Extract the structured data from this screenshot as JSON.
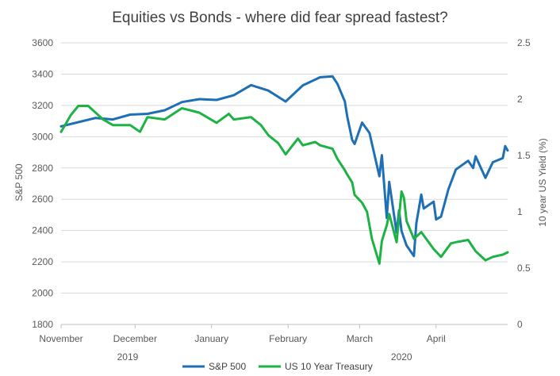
{
  "chart_data": {
    "type": "line",
    "title": "Equities vs Bonds - where did fear spread fastest?",
    "ylabel_left": "S&P 500",
    "ylabel_right": "10 year US Yield (%)",
    "ylim_left": [
      1800,
      3600
    ],
    "ylim_right": [
      0,
      2.5
    ],
    "yticks_left": [
      "1800",
      "2000",
      "2200",
      "2400",
      "2600",
      "2800",
      "3000",
      "3200",
      "3400",
      "3600"
    ],
    "yticks_right": [
      "0",
      "0.5",
      "1",
      "1.5",
      "2",
      "2.5"
    ],
    "x_month_labels": [
      "November",
      "December",
      "January",
      "February",
      "March",
      "April"
    ],
    "x_year_labels": [
      "2019",
      "2020"
    ],
    "grid": true,
    "legend_position": "bottom",
    "colors": {
      "sp500": "#1f6fb7",
      "treasury": "#1db344",
      "grid": "#d9d9d9"
    },
    "series": [
      {
        "name": "S&P 500",
        "axis": "left",
        "color": "#1f6fb7",
        "dates": [
          "2019-11-01",
          "2019-11-08",
          "2019-11-15",
          "2019-11-22",
          "2019-11-29",
          "2019-12-06",
          "2019-12-13",
          "2019-12-20",
          "2019-12-27",
          "2020-01-03",
          "2020-01-10",
          "2020-01-17",
          "2020-01-24",
          "2020-01-31",
          "2020-02-07",
          "2020-02-14",
          "2020-02-19",
          "2020-02-21",
          "2020-02-24",
          "2020-02-25",
          "2020-02-27",
          "2020-02-28",
          "2020-03-02",
          "2020-03-05",
          "2020-03-09",
          "2020-03-10",
          "2020-03-12",
          "2020-03-13",
          "2020-03-16",
          "2020-03-17",
          "2020-03-18",
          "2020-03-20",
          "2020-03-23",
          "2020-03-24",
          "2020-03-26",
          "2020-03-27",
          "2020-03-31",
          "2020-04-01",
          "2020-04-03",
          "2020-04-06",
          "2020-04-09",
          "2020-04-14",
          "2020-04-16",
          "2020-04-17",
          "2020-04-21",
          "2020-04-24",
          "2020-04-28",
          "2020-04-29",
          "2020-04-30"
        ],
        "values": [
          3066,
          3093,
          3120,
          3110,
          3141,
          3146,
          3169,
          3221,
          3240,
          3235,
          3265,
          3330,
          3295,
          3225,
          3328,
          3380,
          3386,
          3338,
          3226,
          3128,
          2979,
          2954,
          3090,
          3024,
          2747,
          2882,
          2481,
          2711,
          2386,
          2529,
          2398,
          2305,
          2237,
          2447,
          2630,
          2541,
          2585,
          2471,
          2489,
          2664,
          2790,
          2846,
          2800,
          2875,
          2737,
          2837,
          2863,
          2940,
          2912
        ]
      },
      {
        "name": "US 10 Year Treasury",
        "axis": "right",
        "color": "#1db344",
        "dates": [
          "2019-11-01",
          "2019-11-05",
          "2019-11-08",
          "2019-11-12",
          "2019-11-18",
          "2019-11-22",
          "2019-11-29",
          "2019-12-03",
          "2019-12-06",
          "2019-12-13",
          "2019-12-20",
          "2019-12-27",
          "2020-01-03",
          "2020-01-08",
          "2020-01-10",
          "2020-01-17",
          "2020-01-21",
          "2020-01-24",
          "2020-01-28",
          "2020-01-31",
          "2020-02-05",
          "2020-02-07",
          "2020-02-12",
          "2020-02-14",
          "2020-02-19",
          "2020-02-21",
          "2020-02-24",
          "2020-02-25",
          "2020-02-27",
          "2020-02-28",
          "2020-03-02",
          "2020-03-04",
          "2020-03-06",
          "2020-03-09",
          "2020-03-10",
          "2020-03-12",
          "2020-03-13",
          "2020-03-16",
          "2020-03-18",
          "2020-03-19",
          "2020-03-20",
          "2020-03-23",
          "2020-03-26",
          "2020-03-31",
          "2020-04-03",
          "2020-04-07",
          "2020-04-09",
          "2020-04-14",
          "2020-04-17",
          "2020-04-21",
          "2020-04-24",
          "2020-04-28",
          "2020-04-30"
        ],
        "values": [
          1.71,
          1.86,
          1.94,
          1.94,
          1.82,
          1.77,
          1.77,
          1.71,
          1.84,
          1.82,
          1.92,
          1.88,
          1.79,
          1.87,
          1.82,
          1.84,
          1.77,
          1.68,
          1.61,
          1.51,
          1.65,
          1.59,
          1.62,
          1.59,
          1.56,
          1.47,
          1.37,
          1.33,
          1.26,
          1.15,
          1.08,
          1.0,
          0.76,
          0.54,
          0.74,
          0.88,
          0.98,
          0.73,
          1.18,
          1.12,
          0.92,
          0.76,
          0.82,
          0.67,
          0.6,
          0.72,
          0.73,
          0.75,
          0.65,
          0.57,
          0.6,
          0.62,
          0.64
        ]
      }
    ]
  }
}
